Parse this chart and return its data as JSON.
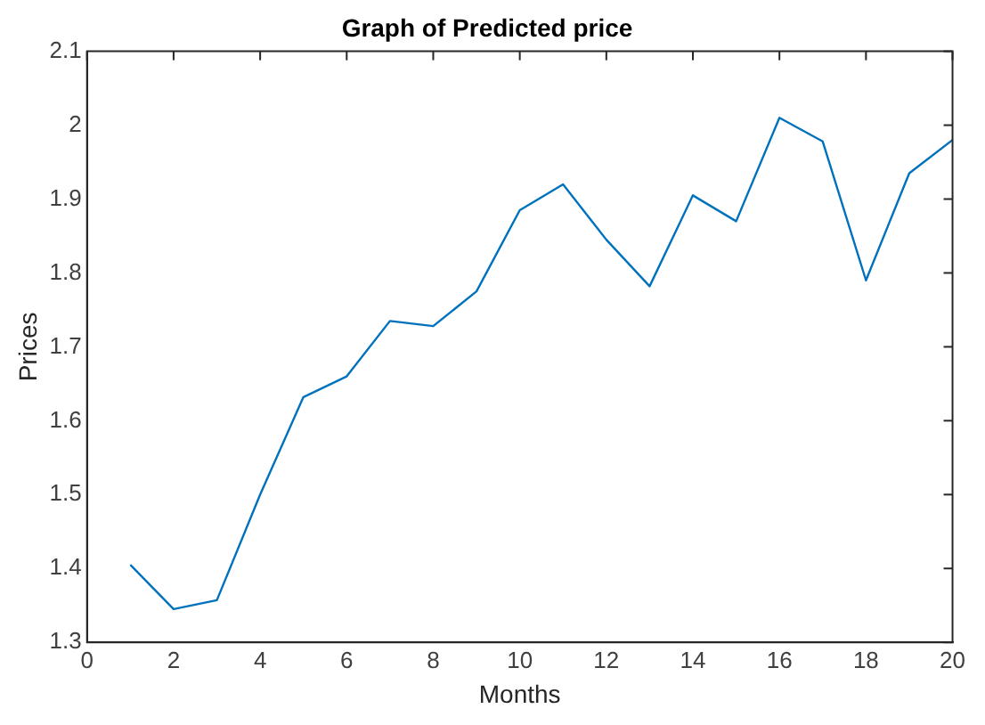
{
  "chart_data": {
    "type": "line",
    "title": "Graph of Predicted price",
    "xlabel": "Months",
    "ylabel": "Prices",
    "x": [
      1,
      2,
      3,
      4,
      5,
      6,
      7,
      8,
      9,
      10,
      11,
      12,
      13,
      14,
      15,
      16,
      17,
      18,
      19,
      20
    ],
    "series": [
      {
        "color": "#0072bd",
        "values": [
          1.405,
          1.345,
          1.357,
          1.5,
          1.632,
          1.66,
          1.735,
          1.728,
          1.775,
          1.885,
          1.92,
          1.845,
          1.782,
          1.905,
          1.87,
          2.01,
          1.978,
          1.79,
          1.935,
          1.98
        ]
      }
    ],
    "xlim": [
      0,
      20
    ],
    "xticks": [
      0,
      2,
      4,
      6,
      8,
      10,
      12,
      14,
      16,
      18,
      20
    ],
    "ylim": [
      1.3,
      2.1
    ],
    "yticks": [
      1.3,
      1.4,
      1.5,
      1.6,
      1.7,
      1.8,
      1.9,
      2,
      2.1
    ],
    "grid": false,
    "legend": false,
    "marker": "none",
    "line_style": "solid"
  }
}
